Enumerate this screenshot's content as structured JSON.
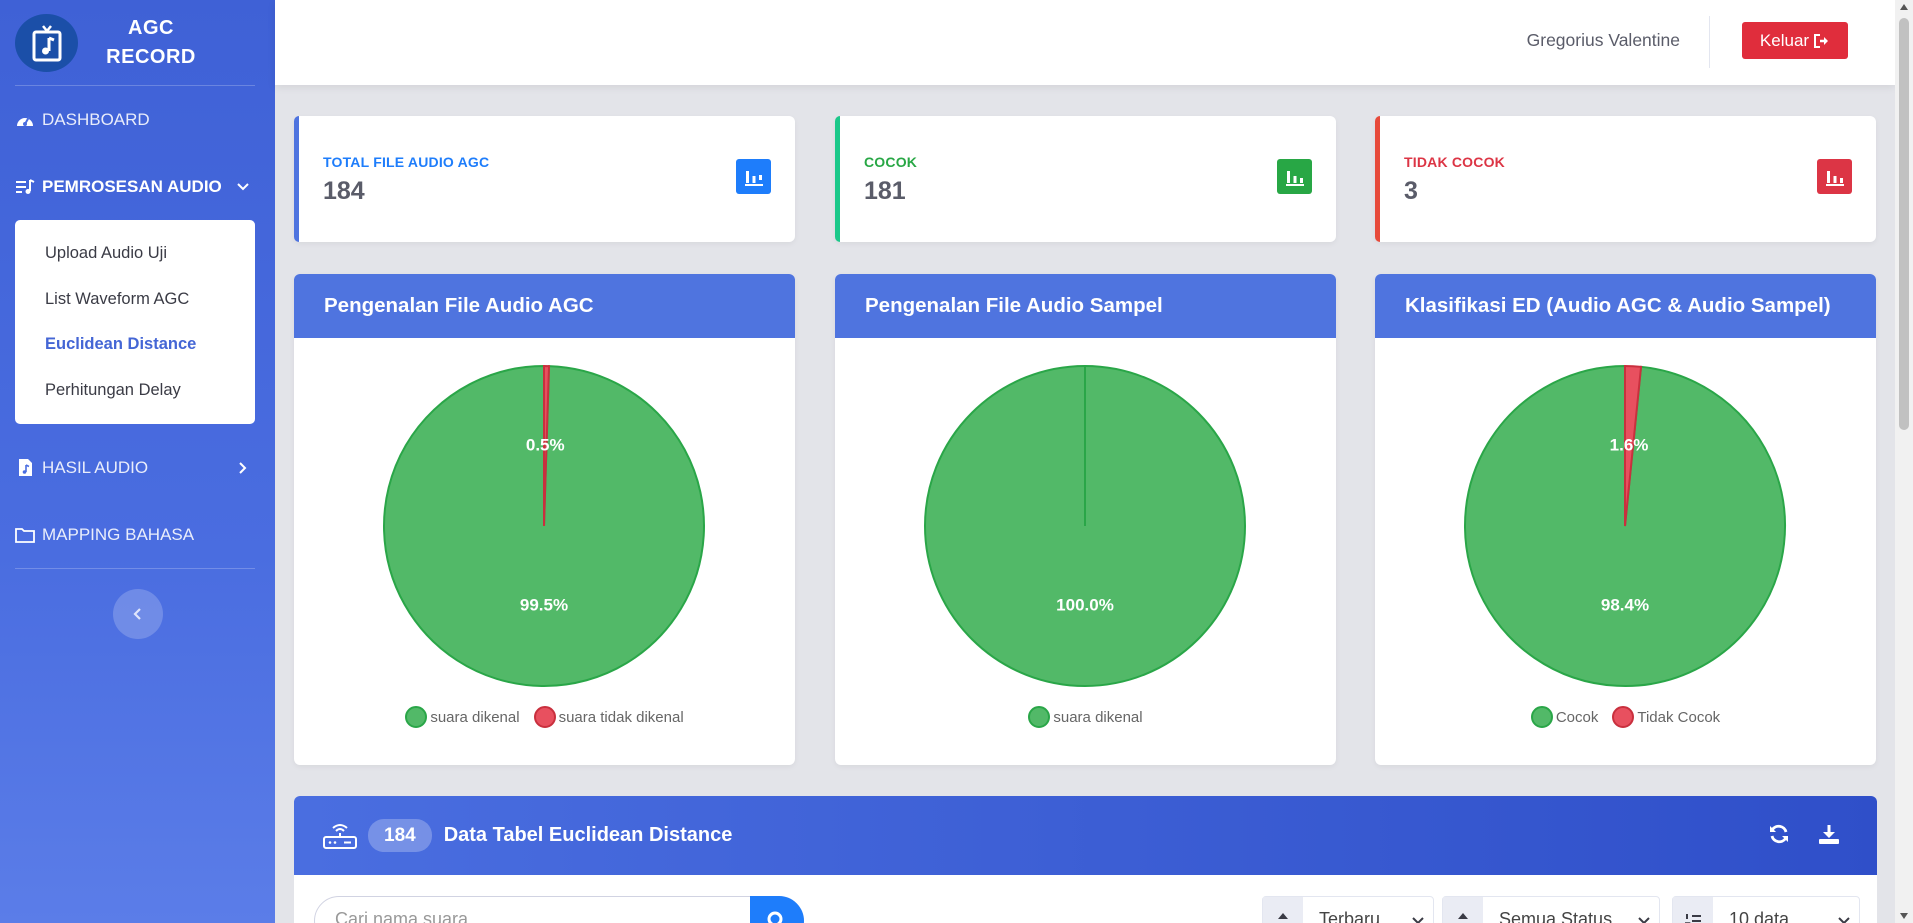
{
  "brand": {
    "line1": "AGC",
    "line2": "RECORD"
  },
  "sidebar": {
    "dashboard": "DASHBOARD",
    "pemrosesan": "PEMROSESAN AUDIO",
    "submenu": [
      "Upload Audio Uji",
      "List Waveform AGC",
      "Euclidean Distance",
      "Perhitungan Delay"
    ],
    "hasil": "HASIL AUDIO",
    "mapping": "MAPPING BAHASA"
  },
  "topbar": {
    "user": "Gregorius Valentine",
    "logout": "Keluar"
  },
  "stats": [
    {
      "label": "TOTAL FILE AUDIO AGC",
      "value": "184",
      "color": "#1e7dfb"
    },
    {
      "label": "COCOK",
      "value": "181",
      "color": "#28a745"
    },
    {
      "label": "TIDAK COCOK",
      "value": "3",
      "color": "#dc3545"
    }
  ],
  "charts": [
    {
      "title": "Pengenalan File Audio AGC"
    },
    {
      "title": "Pengenalan File Audio Sampel"
    },
    {
      "title": "Klasifikasi ED (Audio AGC & Audio Sampel)"
    }
  ],
  "chart_data": [
    {
      "type": "pie",
      "title": "Pengenalan File Audio AGC",
      "categories": [
        "suara dikenal",
        "suara tidak dikenal"
      ],
      "values": [
        99.5,
        0.5
      ],
      "labels": [
        "99.5%",
        "0.5%"
      ],
      "legend": "bottom"
    },
    {
      "type": "pie",
      "title": "Pengenalan File Audio Sampel",
      "categories": [
        "suara dikenal"
      ],
      "values": [
        100.0
      ],
      "labels": [
        "100.0%"
      ],
      "legend": "bottom"
    },
    {
      "type": "pie",
      "title": "Klasifikasi ED (Audio AGC & Audio Sampel)",
      "categories": [
        "Cocok",
        "Tidak Cocok"
      ],
      "values": [
        98.4,
        1.6
      ],
      "labels": [
        "98.4%",
        "1.6%"
      ],
      "legend": "bottom"
    }
  ],
  "colors": {
    "green": "#52b968",
    "green_border": "#2aa648",
    "red": "#e8505f",
    "red_border": "#c9303e"
  },
  "table": {
    "count": "184",
    "title": "Data Tabel Euclidean Distance",
    "search_placeholder": "Cari nama suara",
    "sort": "Terbaru",
    "status": "Semua Status",
    "per_page": "10 data"
  }
}
